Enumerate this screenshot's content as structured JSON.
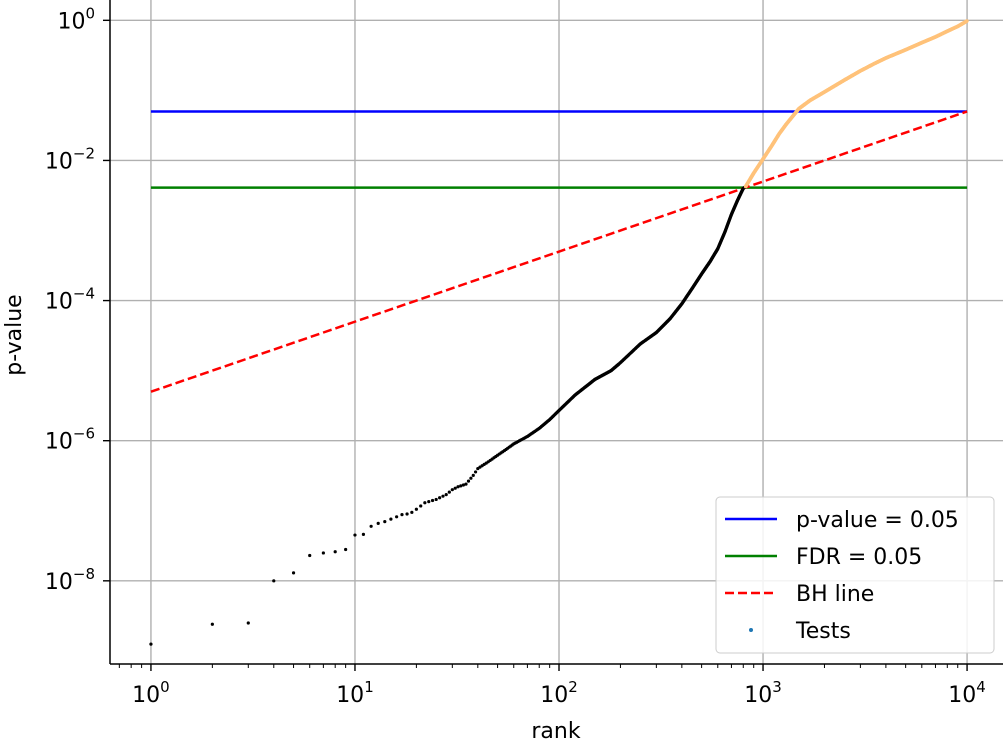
{
  "chart_data": {
    "type": "scatter",
    "xscale": "log",
    "yscale": "log",
    "xlabel": "rank",
    "ylabel": "p-value",
    "xlim": [
      0.63,
      15000
    ],
    "ylim": [
      6.5e-10,
      1.95
    ],
    "grid": true,
    "legend_position": "bottom-right",
    "x_ticks": [
      {
        "value": 1,
        "base": "10",
        "exp": "0"
      },
      {
        "value": 10,
        "base": "10",
        "exp": "1"
      },
      {
        "value": 100,
        "base": "10",
        "exp": "2"
      },
      {
        "value": 1000,
        "base": "10",
        "exp": "3"
      },
      {
        "value": 10000,
        "base": "10",
        "exp": "4"
      }
    ],
    "y_ticks": [
      {
        "value": 1,
        "base": "10",
        "exp": "0"
      },
      {
        "value": 0.01,
        "base": "10",
        "exp": "−2"
      },
      {
        "value": 0.0001,
        "base": "10",
        "exp": "−4"
      },
      {
        "value": 1e-06,
        "base": "10",
        "exp": "−6"
      },
      {
        "value": 1e-08,
        "base": "10",
        "exp": "−8"
      }
    ],
    "lines": [
      {
        "name": "p-value = 0.05",
        "color": "#0000ff",
        "style": "solid",
        "x": [
          1,
          10000
        ],
        "y": [
          0.05,
          0.05
        ]
      },
      {
        "name": "FDR = 0.05",
        "color": "#008000",
        "style": "solid",
        "x": [
          1,
          10000
        ],
        "y": [
          0.0041,
          0.0041
        ]
      },
      {
        "name": "BH line",
        "color": "#ff0000",
        "style": "dashed",
        "x": [
          1,
          10000
        ],
        "y": [
          5e-06,
          0.05
        ]
      }
    ],
    "tests": {
      "name": "Tests",
      "legend_color": "#1f77b4",
      "significant_color": "#000000",
      "nonsignificant_color": "#ffc27a",
      "n_tests": 10000,
      "n_significant": 820,
      "points": [
        [
          1,
          1.25e-09
        ],
        [
          2,
          2.4e-09
        ],
        [
          3,
          2.5e-09
        ],
        [
          4,
          1e-08
        ],
        [
          5,
          1.3e-08
        ],
        [
          6,
          2.3e-08
        ],
        [
          7,
          2.5e-08
        ],
        [
          8,
          2.6e-08
        ],
        [
          9,
          2.8e-08
        ],
        [
          10,
          4.5e-08
        ],
        [
          11,
          4.6e-08
        ],
        [
          12,
          6e-08
        ],
        [
          13,
          6.6e-08
        ],
        [
          14,
          7e-08
        ],
        [
          15,
          7.6e-08
        ],
        [
          16,
          8.2e-08
        ],
        [
          17,
          8.8e-08
        ],
        [
          18,
          9e-08
        ],
        [
          19,
          9.5e-08
        ],
        [
          20,
          1.05e-07
        ],
        [
          22,
          1.3e-07
        ],
        [
          25,
          1.45e-07
        ],
        [
          28,
          1.7e-07
        ],
        [
          30,
          2e-07
        ],
        [
          32,
          2.2e-07
        ],
        [
          35,
          2.4e-07
        ],
        [
          38,
          3.2e-07
        ],
        [
          40,
          4e-07
        ],
        [
          45,
          5e-07
        ],
        [
          50,
          6.2e-07
        ],
        [
          55,
          7.5e-07
        ],
        [
          60,
          9e-07
        ],
        [
          70,
          1.15e-06
        ],
        [
          80,
          1.5e-06
        ],
        [
          90,
          2e-06
        ],
        [
          100,
          2.7e-06
        ],
        [
          120,
          4.5e-06
        ],
        [
          150,
          7.5e-06
        ],
        [
          180,
          1e-05
        ],
        [
          200,
          1.3e-05
        ],
        [
          250,
          2.4e-05
        ],
        [
          300,
          3.5e-05
        ],
        [
          350,
          5.5e-05
        ],
        [
          400,
          9e-05
        ],
        [
          450,
          0.00015
        ],
        [
          500,
          0.00024
        ],
        [
          550,
          0.00036
        ],
        [
          600,
          0.00055
        ],
        [
          650,
          0.00095
        ],
        [
          700,
          0.0017
        ],
        [
          750,
          0.0027
        ],
        [
          800,
          0.004
        ],
        [
          820,
          0.0042
        ],
        [
          850,
          0.005
        ],
        [
          900,
          0.0066
        ],
        [
          1000,
          0.0105
        ],
        [
          1100,
          0.016
        ],
        [
          1200,
          0.024
        ],
        [
          1300,
          0.033
        ],
        [
          1400,
          0.043
        ],
        [
          1500,
          0.055
        ],
        [
          1700,
          0.072
        ],
        [
          2000,
          0.095
        ],
        [
          2500,
          0.14
        ],
        [
          3000,
          0.19
        ],
        [
          3500,
          0.24
        ],
        [
          4000,
          0.29
        ],
        [
          5000,
          0.38
        ],
        [
          6000,
          0.48
        ],
        [
          7000,
          0.58
        ],
        [
          8000,
          0.7
        ],
        [
          9000,
          0.82
        ],
        [
          10000,
          0.98
        ]
      ]
    }
  }
}
